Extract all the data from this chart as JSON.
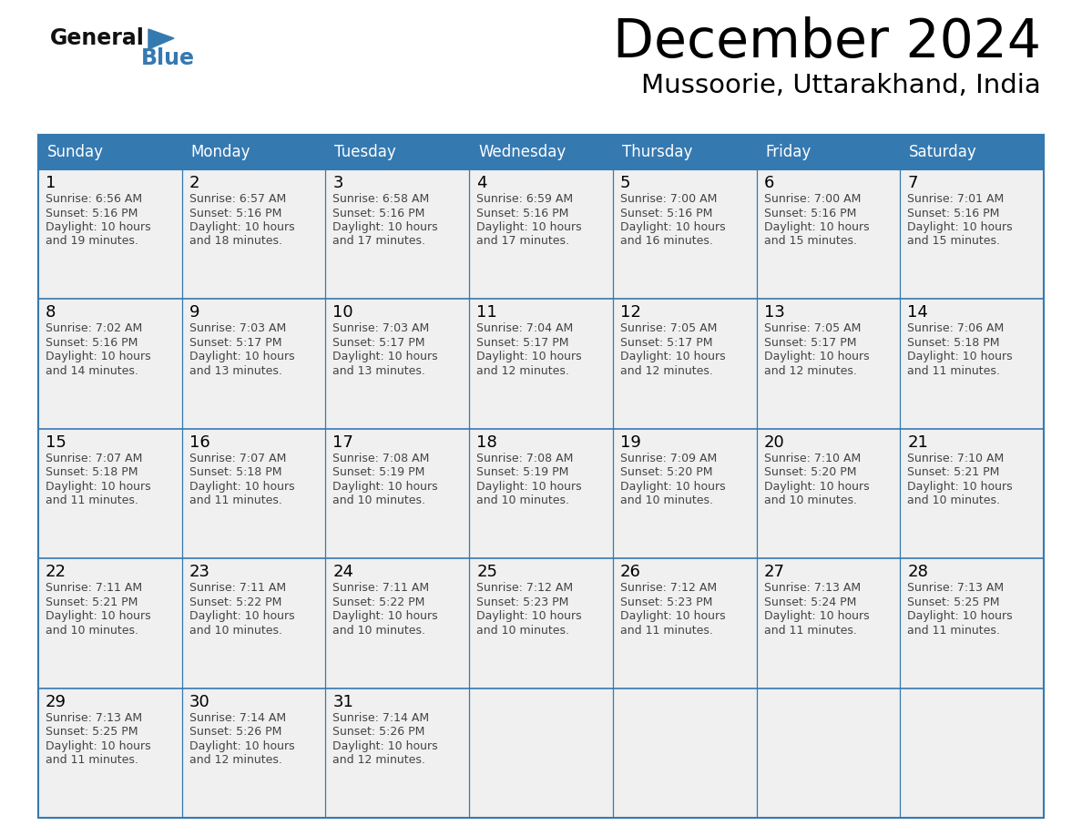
{
  "title": "December 2024",
  "subtitle": "Mussoorie, Uttarakhand, India",
  "days_of_week": [
    "Sunday",
    "Monday",
    "Tuesday",
    "Wednesday",
    "Thursday",
    "Friday",
    "Saturday"
  ],
  "header_bg": "#3579B1",
  "header_text": "#FFFFFF",
  "cell_bg": "#F0F0F0",
  "cell_border": "#3579B1",
  "day_num_color": "#000000",
  "cell_text_color": "#444444",
  "title_color": "#000000",
  "subtitle_color": "#000000",
  "logo_general_color": "#111111",
  "logo_blue_color": "#3579B1",
  "calendar_data": [
    [
      {
        "day": 1,
        "sunrise": "6:56 AM",
        "sunset": "5:16 PM",
        "daylight_line1": "10 hours",
        "daylight_line2": "and 19 minutes."
      },
      {
        "day": 2,
        "sunrise": "6:57 AM",
        "sunset": "5:16 PM",
        "daylight_line1": "10 hours",
        "daylight_line2": "and 18 minutes."
      },
      {
        "day": 3,
        "sunrise": "6:58 AM",
        "sunset": "5:16 PM",
        "daylight_line1": "10 hours",
        "daylight_line2": "and 17 minutes."
      },
      {
        "day": 4,
        "sunrise": "6:59 AM",
        "sunset": "5:16 PM",
        "daylight_line1": "10 hours",
        "daylight_line2": "and 17 minutes."
      },
      {
        "day": 5,
        "sunrise": "7:00 AM",
        "sunset": "5:16 PM",
        "daylight_line1": "10 hours",
        "daylight_line2": "and 16 minutes."
      },
      {
        "day": 6,
        "sunrise": "7:00 AM",
        "sunset": "5:16 PM",
        "daylight_line1": "10 hours",
        "daylight_line2": "and 15 minutes."
      },
      {
        "day": 7,
        "sunrise": "7:01 AM",
        "sunset": "5:16 PM",
        "daylight_line1": "10 hours",
        "daylight_line2": "and 15 minutes."
      }
    ],
    [
      {
        "day": 8,
        "sunrise": "7:02 AM",
        "sunset": "5:16 PM",
        "daylight_line1": "10 hours",
        "daylight_line2": "and 14 minutes."
      },
      {
        "day": 9,
        "sunrise": "7:03 AM",
        "sunset": "5:17 PM",
        "daylight_line1": "10 hours",
        "daylight_line2": "and 13 minutes."
      },
      {
        "day": 10,
        "sunrise": "7:03 AM",
        "sunset": "5:17 PM",
        "daylight_line1": "10 hours",
        "daylight_line2": "and 13 minutes."
      },
      {
        "day": 11,
        "sunrise": "7:04 AM",
        "sunset": "5:17 PM",
        "daylight_line1": "10 hours",
        "daylight_line2": "and 12 minutes."
      },
      {
        "day": 12,
        "sunrise": "7:05 AM",
        "sunset": "5:17 PM",
        "daylight_line1": "10 hours",
        "daylight_line2": "and 12 minutes."
      },
      {
        "day": 13,
        "sunrise": "7:05 AM",
        "sunset": "5:17 PM",
        "daylight_line1": "10 hours",
        "daylight_line2": "and 12 minutes."
      },
      {
        "day": 14,
        "sunrise": "7:06 AM",
        "sunset": "5:18 PM",
        "daylight_line1": "10 hours",
        "daylight_line2": "and 11 minutes."
      }
    ],
    [
      {
        "day": 15,
        "sunrise": "7:07 AM",
        "sunset": "5:18 PM",
        "daylight_line1": "10 hours",
        "daylight_line2": "and 11 minutes."
      },
      {
        "day": 16,
        "sunrise": "7:07 AM",
        "sunset": "5:18 PM",
        "daylight_line1": "10 hours",
        "daylight_line2": "and 11 minutes."
      },
      {
        "day": 17,
        "sunrise": "7:08 AM",
        "sunset": "5:19 PM",
        "daylight_line1": "10 hours",
        "daylight_line2": "and 10 minutes."
      },
      {
        "day": 18,
        "sunrise": "7:08 AM",
        "sunset": "5:19 PM",
        "daylight_line1": "10 hours",
        "daylight_line2": "and 10 minutes."
      },
      {
        "day": 19,
        "sunrise": "7:09 AM",
        "sunset": "5:20 PM",
        "daylight_line1": "10 hours",
        "daylight_line2": "and 10 minutes."
      },
      {
        "day": 20,
        "sunrise": "7:10 AM",
        "sunset": "5:20 PM",
        "daylight_line1": "10 hours",
        "daylight_line2": "and 10 minutes."
      },
      {
        "day": 21,
        "sunrise": "7:10 AM",
        "sunset": "5:21 PM",
        "daylight_line1": "10 hours",
        "daylight_line2": "and 10 minutes."
      }
    ],
    [
      {
        "day": 22,
        "sunrise": "7:11 AM",
        "sunset": "5:21 PM",
        "daylight_line1": "10 hours",
        "daylight_line2": "and 10 minutes."
      },
      {
        "day": 23,
        "sunrise": "7:11 AM",
        "sunset": "5:22 PM",
        "daylight_line1": "10 hours",
        "daylight_line2": "and 10 minutes."
      },
      {
        "day": 24,
        "sunrise": "7:11 AM",
        "sunset": "5:22 PM",
        "daylight_line1": "10 hours",
        "daylight_line2": "and 10 minutes."
      },
      {
        "day": 25,
        "sunrise": "7:12 AM",
        "sunset": "5:23 PM",
        "daylight_line1": "10 hours",
        "daylight_line2": "and 10 minutes."
      },
      {
        "day": 26,
        "sunrise": "7:12 AM",
        "sunset": "5:23 PM",
        "daylight_line1": "10 hours",
        "daylight_line2": "and 11 minutes."
      },
      {
        "day": 27,
        "sunrise": "7:13 AM",
        "sunset": "5:24 PM",
        "daylight_line1": "10 hours",
        "daylight_line2": "and 11 minutes."
      },
      {
        "day": 28,
        "sunrise": "7:13 AM",
        "sunset": "5:25 PM",
        "daylight_line1": "10 hours",
        "daylight_line2": "and 11 minutes."
      }
    ],
    [
      {
        "day": 29,
        "sunrise": "7:13 AM",
        "sunset": "5:25 PM",
        "daylight_line1": "10 hours",
        "daylight_line2": "and 11 minutes."
      },
      {
        "day": 30,
        "sunrise": "7:14 AM",
        "sunset": "5:26 PM",
        "daylight_line1": "10 hours",
        "daylight_line2": "and 12 minutes."
      },
      {
        "day": 31,
        "sunrise": "7:14 AM",
        "sunset": "5:26 PM",
        "daylight_line1": "10 hours",
        "daylight_line2": "and 12 minutes."
      },
      null,
      null,
      null,
      null
    ]
  ]
}
